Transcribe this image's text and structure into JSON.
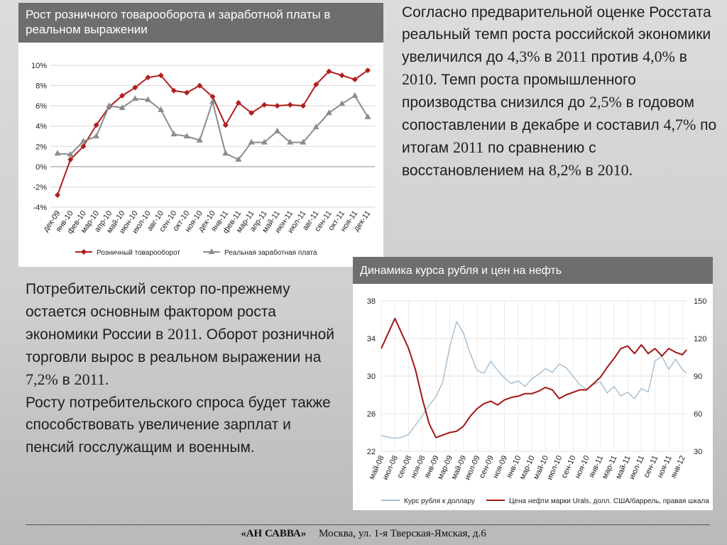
{
  "chart_data": [
    {
      "type": "line",
      "title": "Рост розничного товарооборота и заработной платы в реальном выражении",
      "categories": [
        "дек-09",
        "янв-10",
        "фев-10",
        "мар-10",
        "апр-10",
        "май-10",
        "июн-10",
        "июл-10",
        "авг-10",
        "сен-10",
        "окт-10",
        "ноя-10",
        "дек-10",
        "янв-11",
        "фев-11",
        "мар-11",
        "апр-11",
        "май-11",
        "июн-11",
        "июл-11",
        "авг-11",
        "сен-11",
        "окт-11",
        "ноя-11",
        "дек-11"
      ],
      "series": [
        {
          "name": "Розничный товарооборот",
          "color": "#b01e1e",
          "marker": "diamond",
          "values": [
            -2.8,
            0.7,
            2.0,
            4.1,
            5.9,
            7.0,
            7.8,
            8.8,
            9.0,
            7.5,
            7.3,
            8.0,
            6.9,
            4.1,
            6.3,
            5.3,
            6.1,
            6.0,
            6.1,
            6.0,
            8.1,
            9.4,
            9.0,
            8.6,
            9.5
          ]
        },
        {
          "name": "Реальная заработная плата",
          "color": "#8c8c8c",
          "marker": "triangle",
          "values": [
            1.3,
            1.2,
            2.5,
            3.0,
            6.0,
            5.8,
            6.7,
            6.6,
            5.6,
            3.2,
            3.0,
            2.6,
            6.4,
            1.3,
            0.7,
            2.4,
            2.4,
            3.5,
            2.4,
            2.4,
            3.9,
            5.3,
            6.2,
            7.0,
            4.9
          ]
        }
      ],
      "ylim": [
        -4,
        10
      ],
      "yticks": [
        "-4%",
        "-2%",
        "0%",
        "2%",
        "4%",
        "6%",
        "8%",
        "10%"
      ],
      "grid": true,
      "legend": "bottom"
    },
    {
      "type": "line",
      "title": "Динамика курса рубля и цен на нефть",
      "xticks": [
        "май-08",
        "июл-08",
        "сен-08",
        "ноя-08",
        "янв-09",
        "мар-09",
        "май-09",
        "июл-09",
        "сен-09",
        "ноя-09",
        "янв-10",
        "мар-10",
        "май-10",
        "июл-10",
        "сен-10",
        "ноя-10",
        "янв-11",
        "мар-11",
        "май-11",
        "июл-11",
        "сен-11",
        "ноя-11",
        "янв-12"
      ],
      "left_axis": {
        "ylim": [
          22,
          38
        ],
        "ticks": [
          "22",
          "26",
          "30",
          "34",
          "38"
        ]
      },
      "right_axis": {
        "ylim": [
          30,
          150
        ],
        "ticks": [
          "30",
          "60",
          "90",
          "120",
          "150"
        ]
      },
      "series": [
        {
          "name": "Курс рубля к доллару",
          "axis": "left",
          "color": "#a9c1d3",
          "x": [
            0,
            0.5,
            1,
            1.5,
            2,
            2.5,
            3,
            3.5,
            4,
            4.5,
            5,
            5.5,
            6,
            6.5,
            7,
            7.5,
            8,
            8.5,
            9,
            9.5,
            10,
            10.5,
            11,
            11.5,
            12,
            12.5,
            13,
            13.5,
            14,
            14.5,
            15,
            15.5,
            16,
            16.5,
            17,
            17.5,
            18,
            18.5,
            19,
            19.5,
            20,
            20.5,
            21,
            21.5,
            22,
            22.3
          ],
          "values": [
            23.7,
            23.5,
            23.4,
            23.5,
            23.8,
            24.8,
            25.8,
            26.9,
            27.8,
            29.4,
            33.1,
            35.8,
            34.6,
            32.4,
            30.6,
            30.3,
            31.6,
            30.6,
            29.8,
            29.2,
            29.5,
            28.9,
            29.7,
            30.2,
            30.8,
            30.4,
            31.3,
            30.9,
            30.0,
            29.1,
            28.6,
            29.1,
            29.4,
            28.2,
            28.9,
            27.9,
            28.3,
            27.6,
            28.7,
            28.3,
            31.6,
            32.1,
            30.7,
            31.8,
            30.7,
            30.3
          ]
        },
        {
          "name": "Цена нефти марки Urals, долл. США/баррель, правая шкала",
          "axis": "right",
          "color": "#a31515",
          "x": [
            0,
            0.5,
            1,
            1.5,
            2,
            2.5,
            3,
            3.5,
            4,
            4.5,
            5,
            5.5,
            6,
            6.5,
            7,
            7.5,
            8,
            8.5,
            9,
            9.5,
            10,
            10.5,
            11,
            11.5,
            12,
            12.5,
            13,
            13.5,
            14,
            14.5,
            15,
            15.5,
            16,
            16.5,
            17,
            17.5,
            18,
            18.5,
            19,
            19.5,
            20,
            20.5,
            21,
            21.5,
            22,
            22.3
          ],
          "values": [
            112,
            124,
            136,
            124,
            112,
            95,
            72,
            52,
            41,
            43,
            45,
            46,
            50,
            58,
            64,
            68,
            70,
            67,
            71,
            73,
            74,
            76,
            76,
            78,
            81,
            79,
            72,
            75,
            77,
            79,
            79,
            84,
            89,
            97,
            104,
            112,
            114,
            108,
            115,
            108,
            112,
            106,
            112,
            109,
            107,
            111
          ]
        }
      ],
      "grid": true,
      "legend": "bottom"
    }
  ],
  "text_right": [
    {
      "t": "Согласно предварительной оценке Росстата реальный темп роста российской экономики увеличился до "
    },
    {
      "t": "4,3%",
      "num": true
    },
    {
      "t": " в "
    },
    {
      "t": "2011",
      "num": true
    },
    {
      "t": " против "
    },
    {
      "t": "4,0%",
      "num": true
    },
    {
      "t": " в "
    },
    {
      "t": "2010.",
      "num": true
    },
    {
      "t": " Темп роста промышленного производства снизился до "
    },
    {
      "t": "2,5%",
      "num": true
    },
    {
      "t": " в годовом сопоставлении в декабре и составил "
    },
    {
      "t": "4,7%",
      "num": true
    },
    {
      "t": " по итогам "
    },
    {
      "t": "2011",
      "num": true
    },
    {
      "t": " по сравнению с восстановлением на "
    },
    {
      "t": "8,2%",
      "num": true
    },
    {
      "t": " в "
    },
    {
      "t": "2010.",
      "num": true
    }
  ],
  "text_left": [
    {
      "t": "Потребительский сектор по-прежнему остается основным фактором роста экономики России в "
    },
    {
      "t": "2011.",
      "num": true
    },
    {
      "t": " Оборот розничной торговли вырос в реальном выражении на "
    },
    {
      "t": "7,2%",
      "num": true
    },
    {
      "t": " в "
    },
    {
      "t": "2011.",
      "num": true
    },
    {
      "br": true
    },
    {
      "t": "Росту потребительского спроса будет также способствовать увеличение зарплат и пенсий госслужащим и военным."
    }
  ],
  "footer": {
    "company": "«АН САВВА»",
    "address": "Москва, ул. 1-я Тверская-Ямская, д.6"
  }
}
